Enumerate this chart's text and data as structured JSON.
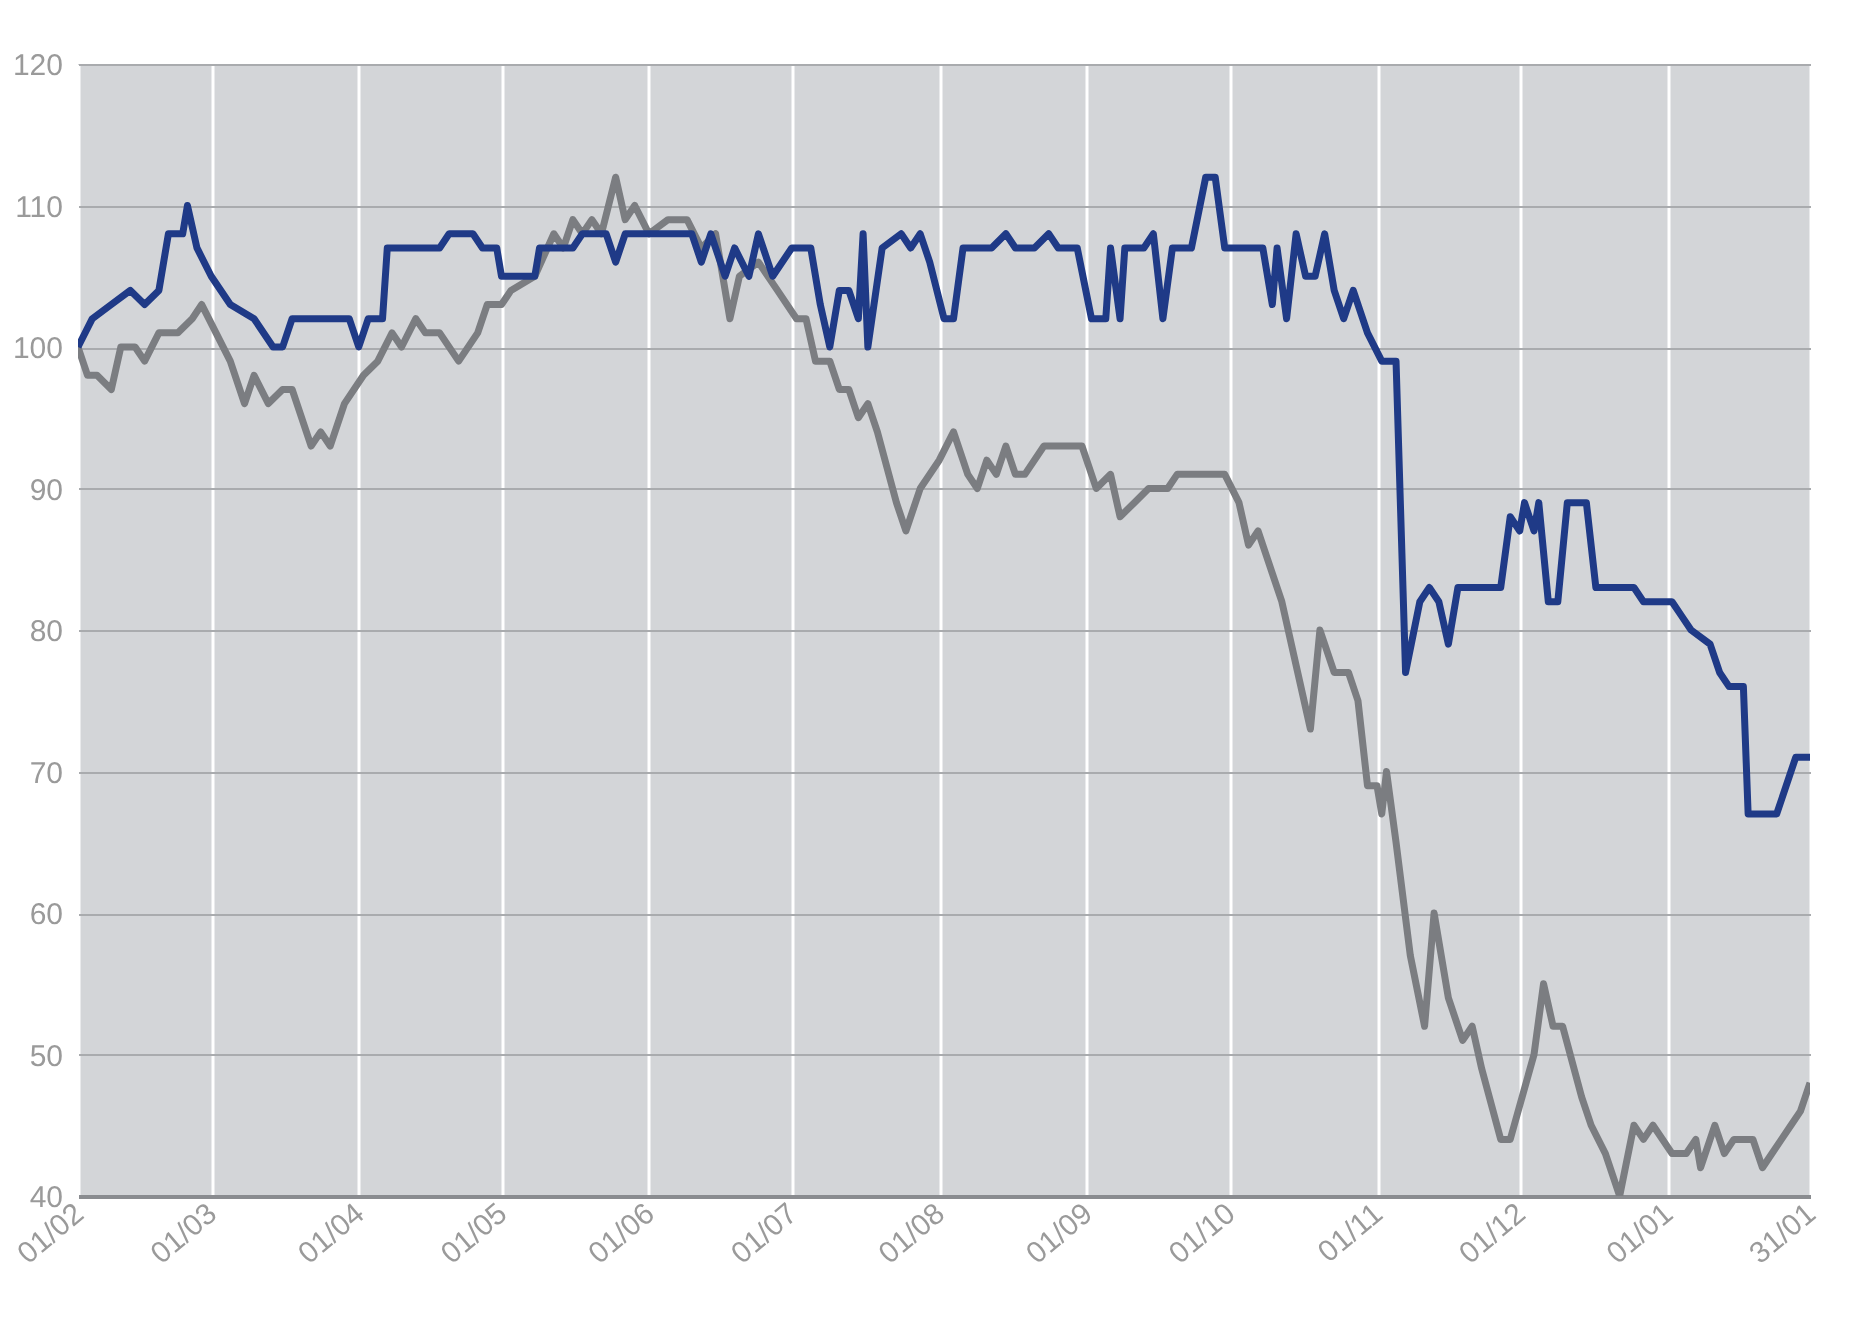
{
  "chart_data": {
    "type": "line",
    "xlim": [
      "2001-02-01",
      "2002-01-31"
    ],
    "xticks": [
      {
        "value": "2001-02-01",
        "label": "01/02"
      },
      {
        "value": "2001-03-01",
        "label": "01/03"
      },
      {
        "value": "2001-04-01",
        "label": "01/04"
      },
      {
        "value": "2001-05-01",
        "label": "01/05"
      },
      {
        "value": "2001-06-01",
        "label": "01/06"
      },
      {
        "value": "2001-07-01",
        "label": "01/07"
      },
      {
        "value": "2001-08-01",
        "label": "01/08"
      },
      {
        "value": "2001-09-01",
        "label": "01/09"
      },
      {
        "value": "2001-10-01",
        "label": "01/10"
      },
      {
        "value": "2001-11-01",
        "label": "01/11"
      },
      {
        "value": "2001-12-01",
        "label": "01/12"
      },
      {
        "value": "2002-01-01",
        "label": "01/01"
      },
      {
        "value": "2002-01-31",
        "label": "31/01"
      }
    ],
    "ylim": [
      40,
      120
    ],
    "yticks": [
      40,
      50,
      60,
      70,
      80,
      90,
      100,
      110,
      120
    ],
    "grid": true,
    "line_style": "solid",
    "marker": "none",
    "series": [
      {
        "color": "#7b7d81",
        "x": [
          "2001-02-01",
          "2001-02-03",
          "2001-02-05",
          "2001-02-08",
          "2001-02-10",
          "2001-02-13",
          "2001-02-15",
          "2001-02-18",
          "2001-02-22",
          "2001-02-25",
          "2001-02-27",
          "2001-03-02",
          "2001-03-05",
          "2001-03-08",
          "2001-03-10",
          "2001-03-13",
          "2001-03-16",
          "2001-03-18",
          "2001-03-22",
          "2001-03-24",
          "2001-03-26",
          "2001-03-29",
          "2001-04-02",
          "2001-04-05",
          "2001-04-08",
          "2001-04-10",
          "2001-04-13",
          "2001-04-15",
          "2001-04-18",
          "2001-04-22",
          "2001-04-26",
          "2001-04-28",
          "2001-05-01",
          "2001-05-03",
          "2001-05-08",
          "2001-05-12",
          "2001-05-14",
          "2001-05-16",
          "2001-05-18",
          "2001-05-20",
          "2001-05-22",
          "2001-05-25",
          "2001-05-27",
          "2001-05-29",
          "2001-06-01",
          "2001-06-05",
          "2001-06-09",
          "2001-06-12",
          "2001-06-15",
          "2001-06-18",
          "2001-06-20",
          "2001-06-24",
          "2001-06-28",
          "2001-07-02",
          "2001-07-04",
          "2001-07-06",
          "2001-07-09",
          "2001-07-11",
          "2001-07-13",
          "2001-07-15",
          "2001-07-17",
          "2001-07-19",
          "2001-07-23",
          "2001-07-25",
          "2001-07-28",
          "2001-08-01",
          "2001-08-04",
          "2001-08-07",
          "2001-08-09",
          "2001-08-11",
          "2001-08-13",
          "2001-08-15",
          "2001-08-17",
          "2001-08-19",
          "2001-08-23",
          "2001-08-31",
          "2001-09-03",
          "2001-09-06",
          "2001-09-08",
          "2001-09-11",
          "2001-09-14",
          "2001-09-18",
          "2001-09-20",
          "2001-09-30",
          "2001-10-03",
          "2001-10-05",
          "2001-10-07",
          "2001-10-10",
          "2001-10-12",
          "2001-10-18",
          "2001-10-20",
          "2001-10-23",
          "2001-10-26",
          "2001-10-28",
          "2001-10-30",
          "2001-11-01",
          "2001-11-02",
          "2001-11-03",
          "2001-11-05",
          "2001-11-08",
          "2001-11-11",
          "2001-11-13",
          "2001-11-16",
          "2001-11-19",
          "2001-11-21",
          "2001-11-23",
          "2001-11-27",
          "2001-11-29",
          "2001-12-04",
          "2001-12-06",
          "2001-12-08",
          "2001-12-10",
          "2001-12-14",
          "2001-12-16",
          "2001-12-19",
          "2001-12-22",
          "2001-12-25",
          "2001-12-27",
          "2001-12-29",
          "2002-01-02",
          "2002-01-05",
          "2002-01-07",
          "2002-01-08",
          "2002-01-11",
          "2002-01-13",
          "2002-01-15",
          "2002-01-19",
          "2002-01-21",
          "2002-01-23",
          "2002-01-25",
          "2002-01-27",
          "2002-01-29",
          "2002-01-31"
        ],
        "values": [
          100,
          98,
          98,
          97,
          100,
          100,
          99,
          101,
          101,
          102,
          103,
          101,
          99,
          96,
          98,
          96,
          97,
          97,
          93,
          94,
          93,
          96,
          98,
          99,
          101,
          100,
          102,
          101,
          101,
          99,
          101,
          103,
          103,
          104,
          105,
          108,
          107,
          109,
          108,
          109,
          108,
          112,
          109,
          110,
          108,
          109,
          109,
          107,
          108,
          102,
          105,
          106,
          104,
          102,
          102,
          99,
          99,
          97,
          97,
          95,
          96,
          94,
          89,
          87,
          90,
          92,
          94,
          91,
          90,
          92,
          91,
          93,
          91,
          91,
          93,
          93,
          90,
          91,
          88,
          89,
          90,
          90,
          91,
          91,
          89,
          86,
          87,
          84,
          82,
          73,
          80,
          77,
          77,
          75,
          69,
          69,
          67,
          70,
          65,
          57,
          52,
          60,
          54,
          51,
          52,
          49,
          44,
          44,
          50,
          55,
          52,
          52,
          47,
          45,
          43,
          40,
          45,
          44,
          45,
          43,
          43,
          44,
          42,
          45,
          43,
          44,
          44,
          42,
          43,
          44,
          45,
          46,
          48
        ]
      },
      {
        "color": "#1f3a87",
        "x": [
          "2001-02-01",
          "2001-02-04",
          "2001-02-08",
          "2001-02-12",
          "2001-02-15",
          "2001-02-18",
          "2001-02-20",
          "2001-02-23",
          "2001-02-24",
          "2001-02-26",
          "2001-03-01",
          "2001-03-05",
          "2001-03-10",
          "2001-03-14",
          "2001-03-16",
          "2001-03-18",
          "2001-03-30",
          "2001-04-01",
          "2001-04-03",
          "2001-04-06",
          "2001-04-07",
          "2001-04-18",
          "2001-04-20",
          "2001-04-25",
          "2001-04-27",
          "2001-04-30",
          "2001-05-01",
          "2001-05-08",
          "2001-05-09",
          "2001-05-16",
          "2001-05-18",
          "2001-05-23",
          "2001-05-25",
          "2001-05-27",
          "2001-06-10",
          "2001-06-12",
          "2001-06-14",
          "2001-06-17",
          "2001-06-19",
          "2001-06-22",
          "2001-06-24",
          "2001-06-27",
          "2001-07-01",
          "2001-07-05",
          "2001-07-07",
          "2001-07-09",
          "2001-07-11",
          "2001-07-13",
          "2001-07-15",
          "2001-07-16",
          "2001-07-17",
          "2001-07-20",
          "2001-07-24",
          "2001-07-26",
          "2001-07-28",
          "2001-07-30",
          "2001-08-02",
          "2001-08-04",
          "2001-08-06",
          "2001-08-12",
          "2001-08-15",
          "2001-08-17",
          "2001-08-21",
          "2001-08-24",
          "2001-08-26",
          "2001-08-30",
          "2001-09-02",
          "2001-09-05",
          "2001-09-06",
          "2001-09-08",
          "2001-09-09",
          "2001-09-13",
          "2001-09-15",
          "2001-09-17",
          "2001-09-19",
          "2001-09-23",
          "2001-09-26",
          "2001-09-28",
          "2001-09-30",
          "2001-10-08",
          "2001-10-10",
          "2001-10-11",
          "2001-10-13",
          "2001-10-15",
          "2001-10-17",
          "2001-10-19",
          "2001-10-21",
          "2001-10-23",
          "2001-10-25",
          "2001-10-27",
          "2001-10-30",
          "2001-11-02",
          "2001-11-05",
          "2001-11-07",
          "2001-11-10",
          "2001-11-12",
          "2001-11-14",
          "2001-11-16",
          "2001-11-18",
          "2001-11-27",
          "2001-11-29",
          "2001-12-01",
          "2001-12-02",
          "2001-12-04",
          "2001-12-05",
          "2001-12-07",
          "2001-12-09",
          "2001-12-11",
          "2001-12-15",
          "2001-12-17",
          "2001-12-25",
          "2001-12-27",
          "2002-01-02",
          "2002-01-04",
          "2002-01-06",
          "2002-01-10",
          "2002-01-12",
          "2002-01-14",
          "2002-01-17",
          "2002-01-18",
          "2002-01-24",
          "2002-01-26",
          "2002-01-28",
          "2002-01-31"
        ],
        "values": [
          100,
          102,
          103,
          104,
          103,
          104,
          108,
          108,
          110,
          107,
          105,
          103,
          102,
          100,
          100,
          102,
          102,
          100,
          102,
          102,
          107,
          107,
          108,
          108,
          107,
          107,
          105,
          105,
          107,
          107,
          108,
          108,
          106,
          108,
          108,
          106,
          108,
          105,
          107,
          105,
          108,
          105,
          107,
          107,
          103,
          100,
          104,
          104,
          102,
          108,
          100,
          107,
          108,
          107,
          108,
          106,
          102,
          102,
          107,
          107,
          108,
          107,
          107,
          108,
          107,
          107,
          102,
          102,
          107,
          102,
          107,
          107,
          108,
          102,
          107,
          107,
          112,
          112,
          107,
          107,
          103,
          107,
          102,
          108,
          105,
          105,
          108,
          104,
          102,
          104,
          101,
          99,
          99,
          77,
          82,
          83,
          82,
          79,
          83,
          83,
          88,
          87,
          89,
          87,
          89,
          82,
          82,
          89,
          89,
          83,
          83,
          82,
          82,
          81,
          80,
          79,
          77,
          76,
          76,
          67,
          67,
          69,
          71,
          71
        ]
      }
    ]
  }
}
